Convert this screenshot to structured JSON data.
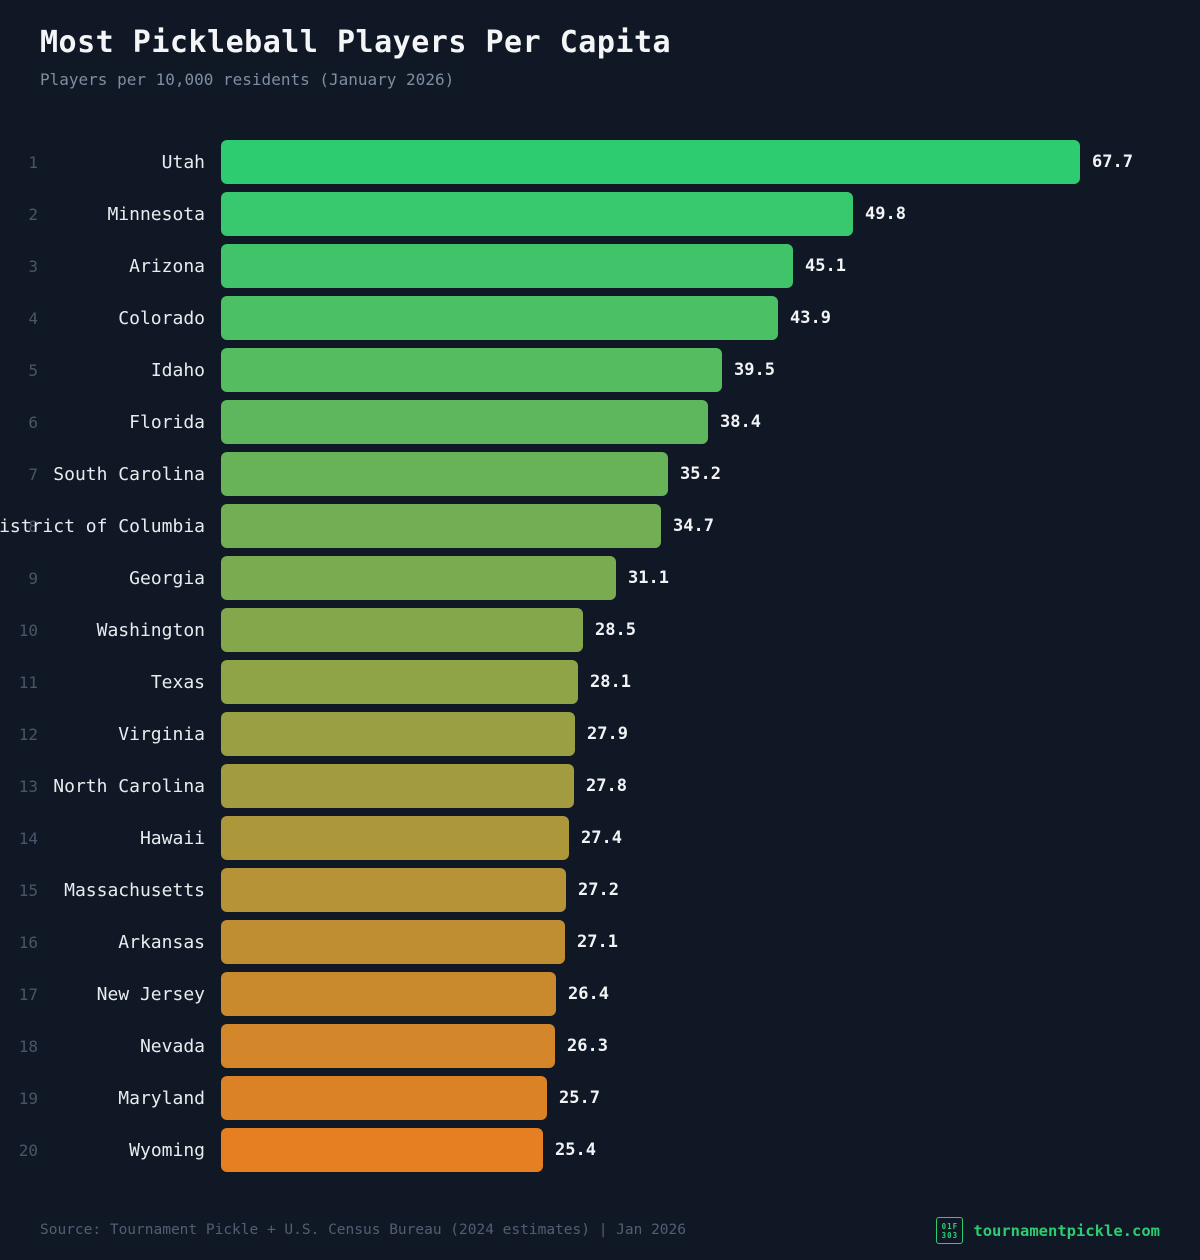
{
  "header": {
    "title": "Most Pickleball Players Per Capita",
    "subtitle": "Players per 10,000 residents (January 2026)"
  },
  "chart_data": {
    "type": "bar",
    "orientation": "horizontal",
    "title": "Most Pickleball Players Per Capita",
    "subtitle": "Players per 10,000 residents (January 2026)",
    "value_unit": "players per 10,000 residents",
    "xlim": [
      0,
      67.7
    ],
    "grid": false,
    "legend": "none",
    "categories": [
      "Utah",
      "Minnesota",
      "Arizona",
      "Colorado",
      "Idaho",
      "Florida",
      "South Carolina",
      "District of Columbia",
      "Georgia",
      "Washington",
      "Texas",
      "Virginia",
      "North Carolina",
      "Hawaii",
      "Massachusetts",
      "Arkansas",
      "New Jersey",
      "Nevada",
      "Maryland",
      "Wyoming"
    ],
    "values": [
      67.7,
      49.8,
      45.1,
      43.9,
      39.5,
      38.4,
      35.2,
      34.7,
      31.1,
      28.5,
      28.1,
      27.9,
      27.8,
      27.4,
      27.2,
      27.1,
      26.4,
      26.3,
      25.7,
      25.4
    ],
    "rows": [
      {
        "rank": "1",
        "name": "Utah",
        "value": "67.7",
        "num": 67.7,
        "color": "#2ecc71"
      },
      {
        "rank": "2",
        "name": "Minnesota",
        "value": "49.8",
        "num": 49.8,
        "color": "#38c86d"
      },
      {
        "rank": "3",
        "name": "Arizona",
        "value": "45.1",
        "num": 45.1,
        "color": "#41c469"
      },
      {
        "rank": "4",
        "name": "Colorado",
        "value": "43.9",
        "num": 43.9,
        "color": "#4bc065"
      },
      {
        "rank": "5",
        "name": "Idaho",
        "value": "39.5",
        "num": 39.5,
        "color": "#55bc60"
      },
      {
        "rank": "6",
        "name": "Florida",
        "value": "38.4",
        "num": 38.4,
        "color": "#5eb75c"
      },
      {
        "rank": "7",
        "name": "South Carolina",
        "value": "35.2",
        "num": 35.2,
        "color": "#68b358"
      },
      {
        "rank": "8",
        "name": "District of Columbia",
        "value": "34.7",
        "num": 34.7,
        "color": "#72af54"
      },
      {
        "rank": "9",
        "name": "Georgia",
        "value": "31.1",
        "num": 31.1,
        "color": "#7bab50"
      },
      {
        "rank": "10",
        "name": "Washington",
        "value": "28.5",
        "num": 28.5,
        "color": "#85a74c"
      },
      {
        "rank": "11",
        "name": "Texas",
        "value": "28.1",
        "num": 28.1,
        "color": "#8fa347"
      },
      {
        "rank": "12",
        "name": "Virginia",
        "value": "27.9",
        "num": 27.9,
        "color": "#999f43"
      },
      {
        "rank": "13",
        "name": "North Carolina",
        "value": "27.8",
        "num": 27.8,
        "color": "#a29b3f"
      },
      {
        "rank": "14",
        "name": "Hawaii",
        "value": "27.4",
        "num": 27.4,
        "color": "#ac973b"
      },
      {
        "rank": "15",
        "name": "Massachusetts",
        "value": "27.2",
        "num": 27.2,
        "color": "#b69337"
      },
      {
        "rank": "16",
        "name": "Arkansas",
        "value": "27.1",
        "num": 27.1,
        "color": "#bf8e33"
      },
      {
        "rank": "17",
        "name": "New Jersey",
        "value": "26.4",
        "num": 26.4,
        "color": "#c98a2e"
      },
      {
        "rank": "18",
        "name": "Nevada",
        "value": "26.3",
        "num": 26.3,
        "color": "#d3862a"
      },
      {
        "rank": "19",
        "name": "Maryland",
        "value": "25.7",
        "num": 25.7,
        "color": "#dc8226"
      },
      {
        "rank": "20",
        "name": "Wyoming",
        "value": "25.4",
        "num": 25.4,
        "color": "#e67e22"
      }
    ]
  },
  "footer": {
    "source": "Source: Tournament Pickle + U.S. Census Bureau (2024 estimates) | Jan 2026",
    "brand": "tournamentpickle.com",
    "brand_icon_line1": "01F",
    "brand_icon_line2": "303"
  },
  "colors": {
    "background": "#101826",
    "title": "#f3f5f7",
    "subtitle": "#7f8da1",
    "rank": "#4a5569",
    "label": "#e8ecef",
    "value": "#f2f3f5",
    "source": "#525e72",
    "accent_green": "#2ecc71",
    "bar_gradient_start": "#2ecc71",
    "bar_gradient_end": "#e67e22"
  }
}
